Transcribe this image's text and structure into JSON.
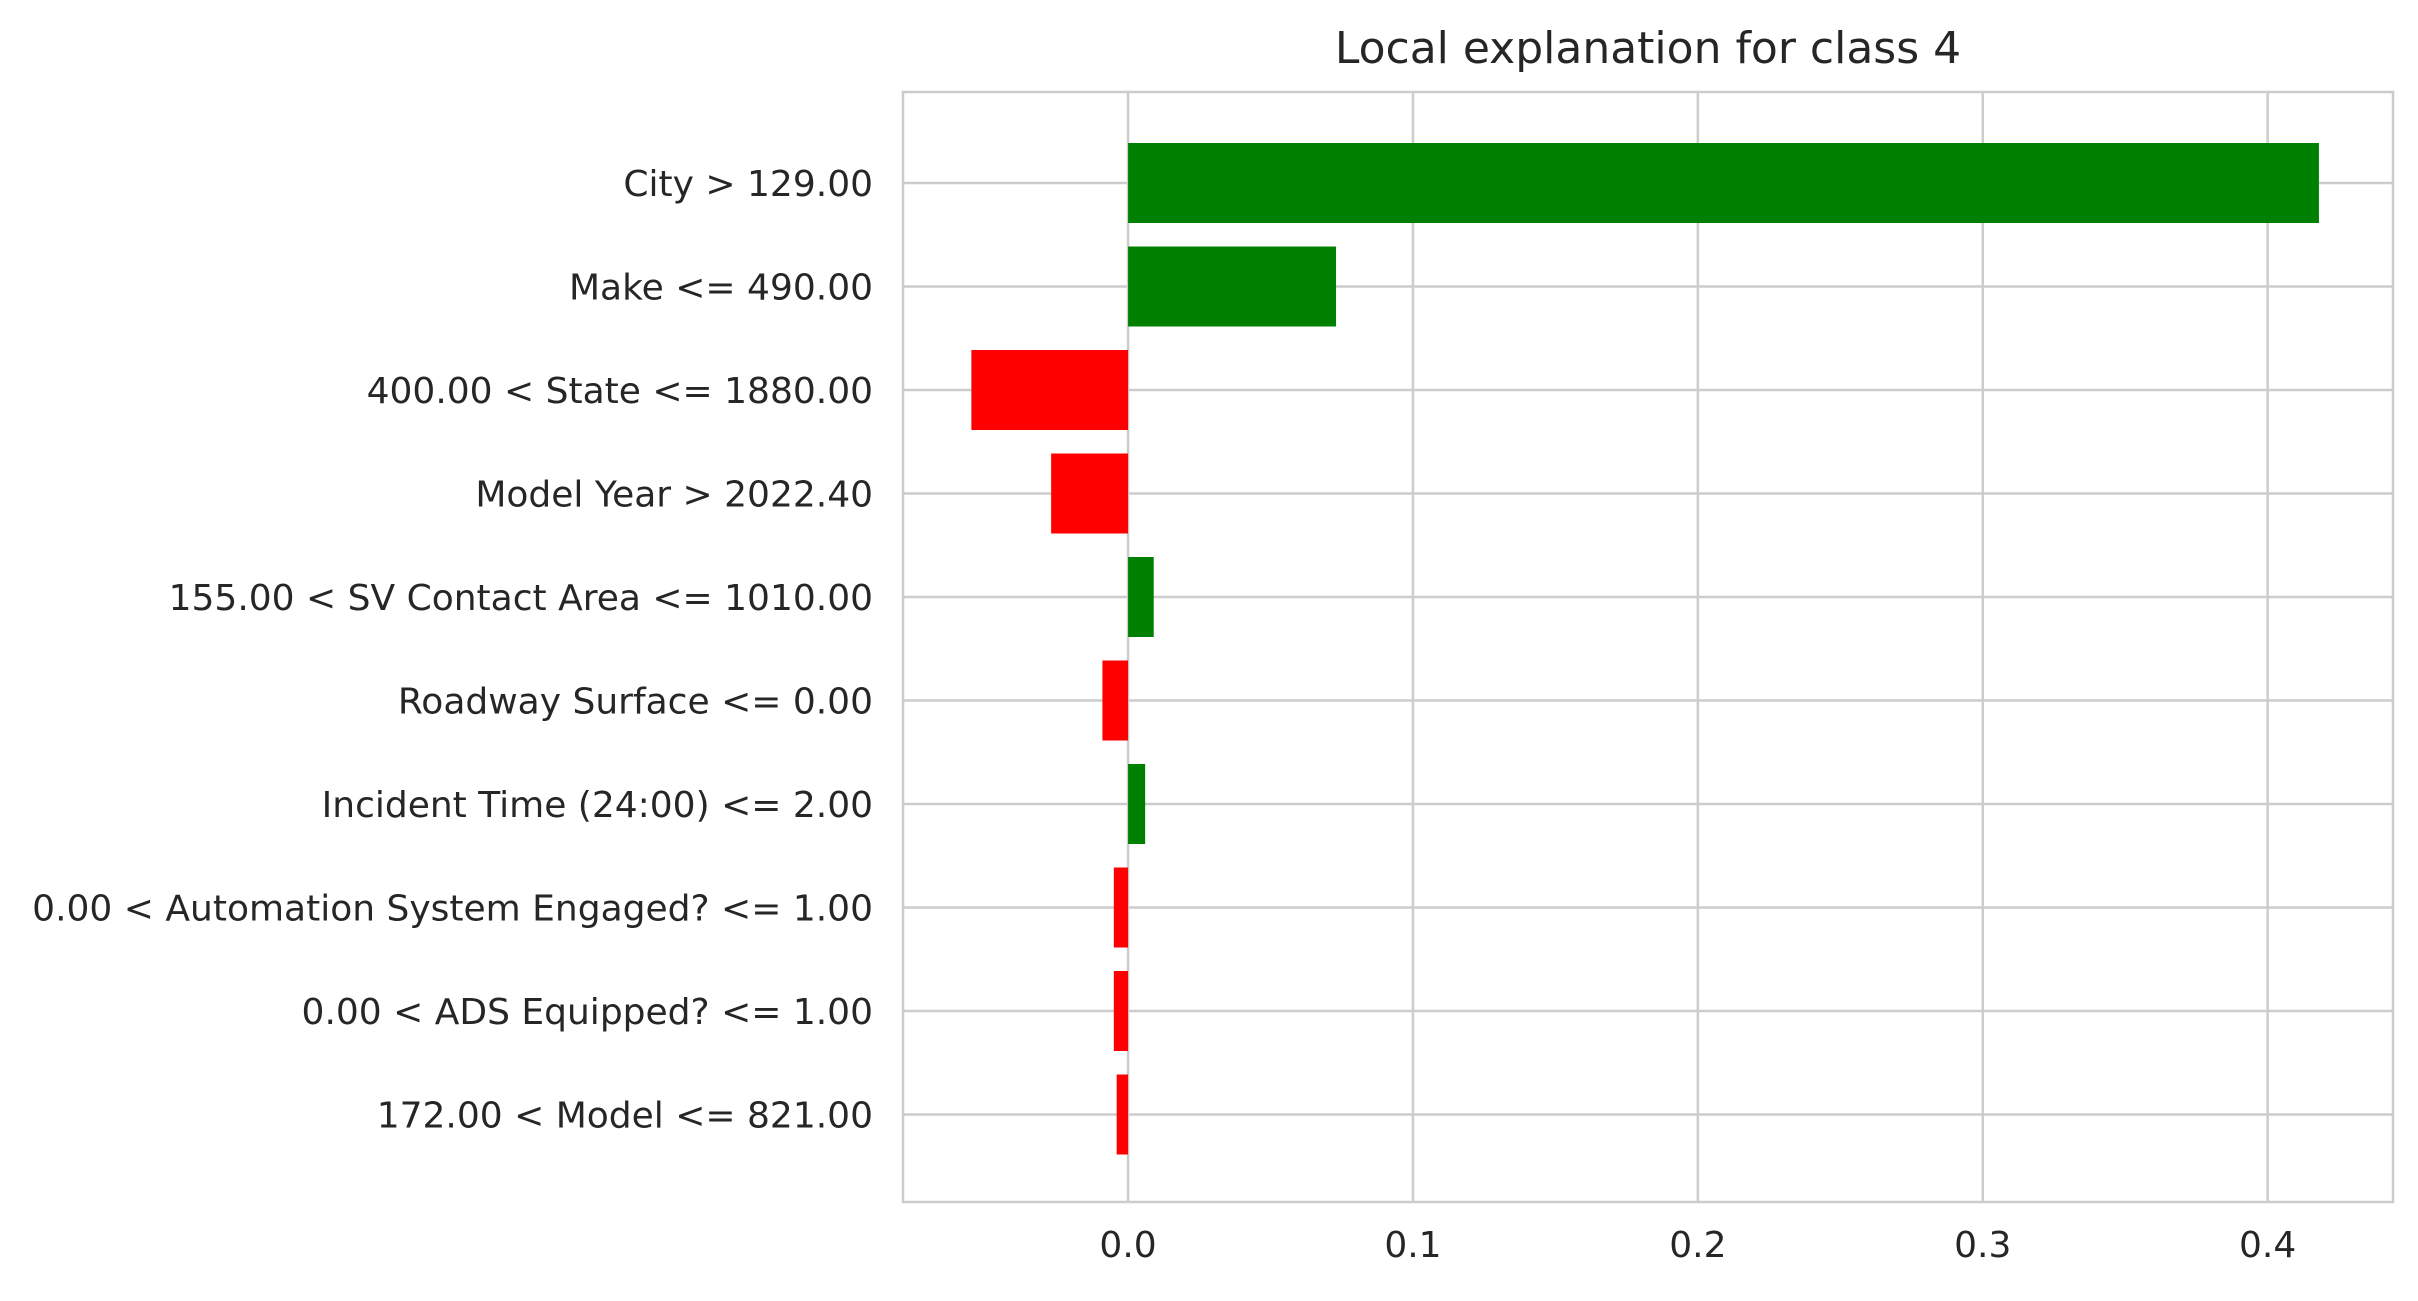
{
  "chart_data": {
    "type": "bar",
    "orientation": "horizontal",
    "title": "Local explanation for class 4",
    "xlabel": "",
    "ylabel": "",
    "categories": [
      "City > 129.00",
      "Make <= 490.00",
      "400.00 < State <= 1880.00",
      "Model Year > 2022.40",
      "155.00 < SV Contact Area <= 1010.00",
      "Roadway Surface <= 0.00",
      "Incident Time (24:00) <= 2.00",
      "0.00 < Automation System Engaged? <= 1.00",
      "0.00 < ADS Equipped? <= 1.00",
      "172.00 < Model <= 821.00"
    ],
    "values": [
      0.418,
      0.073,
      -0.055,
      -0.027,
      0.009,
      -0.009,
      0.006,
      -0.005,
      -0.005,
      -0.004
    ],
    "xlim": [
      -0.079,
      0.444
    ],
    "xticks": [
      0.0,
      0.1,
      0.2,
      0.3,
      0.4
    ],
    "xtick_labels": [
      "0.0",
      "0.1",
      "0.2",
      "0.3",
      "0.4"
    ],
    "grid": true,
    "legend": "none",
    "colors": {
      "positive": "#008000",
      "negative": "#ff0000",
      "grid": "#cccccc",
      "spine": "#cccccc",
      "text": "#262626",
      "background": "#ffffff"
    }
  }
}
